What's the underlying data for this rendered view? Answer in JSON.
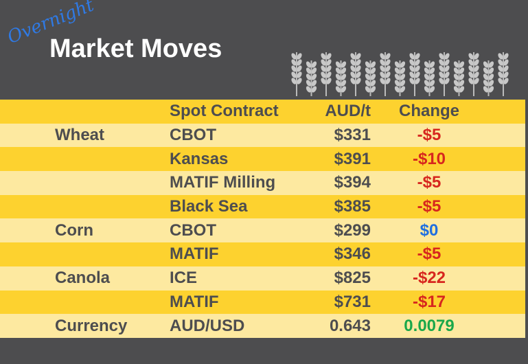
{
  "header": {
    "script": "Overnight",
    "title": "Market Moves"
  },
  "table": {
    "columns": [
      "Spot Contract",
      "AUD/t",
      "Change"
    ],
    "rows": [
      {
        "commodity": "Wheat",
        "contract": "CBOT",
        "price": "$331",
        "change": "-$5",
        "color": "#d7261e"
      },
      {
        "contract": "Kansas",
        "price": "$391",
        "change": "-$10",
        "color": "#d7261e"
      },
      {
        "contract": "MATIF Milling",
        "price": "$394",
        "change": "-$5",
        "color": "#d7261e"
      },
      {
        "contract": "Black Sea",
        "price": "$385",
        "change": "-$5",
        "color": "#d7261e"
      },
      {
        "commodity": "Corn",
        "contract": "CBOT",
        "price": "$299",
        "change": "$0",
        "color": "#1f6fe0"
      },
      {
        "contract": "MATIF",
        "price": "$346",
        "change": "-$5",
        "color": "#d7261e"
      },
      {
        "commodity": "Canola",
        "contract": "ICE",
        "price": "$825",
        "change": "-$22",
        "color": "#d7261e"
      },
      {
        "contract": "MATIF",
        "price": "$731",
        "change": "-$17",
        "color": "#d7261e"
      },
      {
        "commodity": "Currency",
        "contract": "AUD/USD",
        "price": "0.643",
        "change": "0.0079",
        "color": "#1aa84a"
      }
    ]
  }
}
